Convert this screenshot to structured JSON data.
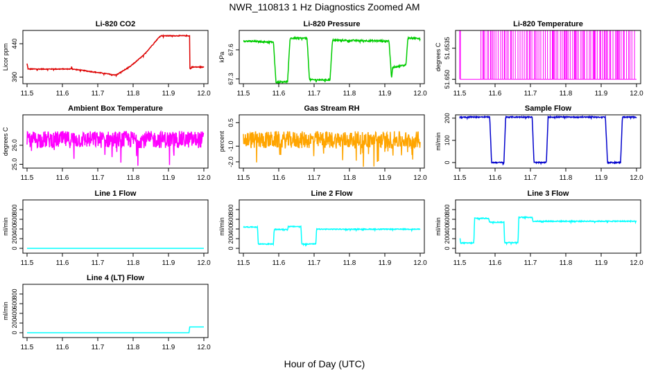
{
  "figure": {
    "title": "NWR_110813  1 Hz Diagnostics Zoomed AM",
    "xlabel": "Hour of Day (UTC)"
  },
  "chart_data": [
    {
      "type": "line",
      "title": "Li-820 CO2",
      "ylabel": "Licor ppm",
      "color": "#dd0000",
      "xlim": [
        11.5,
        12.0
      ],
      "ylim": [
        380,
        460
      ],
      "xticks": [
        "11.5",
        "11.6",
        "11.7",
        "11.8",
        "11.9",
        "12.0"
      ],
      "yticks": [
        {
          "v": 390,
          "label": "390"
        },
        {
          "v": 440,
          "label": "440"
        }
      ],
      "noise": 0.6,
      "series": [
        {
          "x": [
            11.5,
            11.5,
            11.503,
            11.503,
            11.625,
            11.625,
            11.628,
            11.628,
            11.752,
            11.752,
            11.792,
            11.792,
            11.83,
            11.83,
            11.877,
            11.877,
            11.96,
            11.96,
            11.965,
            11.965,
            12.0
          ],
          "y": [
            400,
            410,
            402,
            402,
            402,
            408,
            402,
            402,
            393,
            393,
            406,
            406,
            423,
            423,
            452,
            452,
            452,
            403,
            403,
            405,
            405
          ]
        }
      ]
    },
    {
      "type": "line",
      "title": "Li-820 Pressure",
      "ylabel": "kPa",
      "color": "#00cc00",
      "xlim": [
        11.5,
        12.0
      ],
      "ylim": [
        67.25,
        67.8
      ],
      "xticks": [
        "11.5",
        "11.6",
        "11.7",
        "11.8",
        "11.9",
        "12.0"
      ],
      "yticks": [
        {
          "v": 67.3,
          "label": "67.3"
        },
        {
          "v": 67.6,
          "label": "67.6"
        }
      ],
      "noise": 0.008,
      "series": [
        {
          "x": [
            11.5,
            11.5,
            11.503,
            11.585,
            11.592,
            11.625,
            11.632,
            11.68,
            11.687,
            11.745,
            11.752,
            11.912,
            11.919,
            11.922,
            11.955,
            11.96,
            11.965,
            12.0
          ],
          "y": [
            67.3,
            67.7,
            67.69,
            67.68,
            67.27,
            67.27,
            67.72,
            67.72,
            67.29,
            67.29,
            67.7,
            67.69,
            67.3,
            67.42,
            67.44,
            67.45,
            67.72,
            67.72
          ]
        }
      ]
    },
    {
      "type": "line",
      "title": "Li-820 Temperature",
      "ylabel": "degrees C",
      "color": "#ff00ff",
      "xlim": [
        11.5,
        12.0
      ],
      "ylim": [
        51.6495,
        51.6555
      ],
      "xticks": [
        "11.5",
        "11.6",
        "11.7",
        "11.8",
        "11.9",
        "12.0"
      ],
      "yticks": [
        {
          "v": 51.65,
          "label": "51.650"
        },
        {
          "v": 51.6535,
          "label": "51.6535"
        }
      ],
      "toggle": {
        "low": 51.65,
        "high": 51.6555,
        "start": 11.56
      },
      "series": [
        {
          "x": [
            11.5,
            11.5,
            11.502,
            11.502,
            12.0
          ],
          "y": [
            51.65,
            51.6555,
            51.6555,
            51.65,
            51.65
          ]
        }
      ]
    },
    {
      "type": "line",
      "title": "Ambient Box Temperature",
      "ylabel": "degrees C",
      "color": "#ff00ff",
      "xlim": [
        11.5,
        12.0
      ],
      "ylim": [
        24.8,
        27.6
      ],
      "xticks": [
        "11.5",
        "11.6",
        "11.7",
        "11.8",
        "11.9",
        "12.0"
      ],
      "yticks": [
        {
          "v": 25.0,
          "label": "25.0"
        },
        {
          "v": 26.0,
          "label": "26.0"
        }
      ],
      "noise": 0.45,
      "series": [
        {
          "x": [
            11.5,
            12.0
          ],
          "y": [
            26.3,
            26.3
          ]
        }
      ]
    },
    {
      "type": "line",
      "title": "Gas Stream RH",
      "ylabel": "percent",
      "color": "#ffa500",
      "xlim": [
        11.5,
        12.0
      ],
      "ylim": [
        -2.4,
        1.0
      ],
      "xticks": [
        "11.5",
        "11.6",
        "11.7",
        "11.8",
        "11.9",
        "12.0"
      ],
      "yticks": [
        {
          "v": -2.0,
          "label": "-2.0"
        },
        {
          "v": -1.0,
          "label": "-1.0"
        },
        {
          "v": 0.5,
          "label": "0.5"
        }
      ],
      "noise": 0.55,
      "series": [
        {
          "x": [
            11.5,
            12.0
          ],
          "y": [
            -0.6,
            -0.6
          ]
        }
      ]
    },
    {
      "type": "line",
      "title": "Sample Flow",
      "ylabel": "ml/min",
      "color": "#0000cc",
      "xlim": [
        11.5,
        12.0
      ],
      "ylim": [
        -25,
        215
      ],
      "xticks": [
        "11.5",
        "11.6",
        "11.7",
        "11.8",
        "11.9",
        "12.0"
      ],
      "yticks": [
        {
          "v": 0,
          "label": "0"
        },
        {
          "v": 100,
          "label": "100"
        },
        {
          "v": 200,
          "label": "200"
        }
      ],
      "noise": 2.5,
      "series": [
        {
          "x": [
            11.5,
            11.5,
            11.502,
            11.585,
            11.59,
            11.625,
            11.63,
            11.705,
            11.71,
            11.745,
            11.75,
            11.912,
            11.918,
            11.955,
            11.96,
            12.0
          ],
          "y": [
            70,
            205,
            205,
            205,
            0,
            0,
            205,
            205,
            0,
            0,
            205,
            205,
            0,
            0,
            205,
            205
          ]
        }
      ]
    },
    {
      "type": "line",
      "title": "Line 1 Flow",
      "ylabel": "ml/min",
      "color": "#00ffff",
      "xlim": [
        11.5,
        12.0
      ],
      "ylim": [
        -100,
        1000
      ],
      "xticks": [
        "11.5",
        "11.6",
        "11.7",
        "11.8",
        "11.9",
        "12.0"
      ],
      "yticks": [
        {
          "v": 0,
          "label": "0"
        },
        {
          "v": 200,
          "label": "200"
        },
        {
          "v": 400,
          "label": "400"
        },
        {
          "v": 600,
          "label": "600"
        },
        {
          "v": 800,
          "label": "800"
        }
      ],
      "noise": 0,
      "series": [
        {
          "x": [
            11.5,
            12.0
          ],
          "y": [
            0,
            0
          ]
        }
      ]
    },
    {
      "type": "line",
      "title": "Line 2 Flow",
      "ylabel": "ml/min",
      "color": "#00ffff",
      "xlim": [
        11.5,
        12.0
      ],
      "ylim": [
        -100,
        1000
      ],
      "xticks": [
        "11.5",
        "11.6",
        "11.7",
        "11.8",
        "11.9",
        "12.0"
      ],
      "yticks": [
        {
          "v": 0,
          "label": "0"
        },
        {
          "v": 200,
          "label": "200"
        },
        {
          "v": 400,
          "label": "400"
        },
        {
          "v": 600,
          "label": "600"
        },
        {
          "v": 800,
          "label": "800"
        }
      ],
      "noise": 8,
      "series": [
        {
          "x": [
            11.5,
            11.54,
            11.542,
            11.585,
            11.587,
            11.625,
            11.627,
            11.663,
            11.665,
            11.705,
            11.707,
            12.0
          ],
          "y": [
            440,
            440,
            90,
            90,
            390,
            390,
            450,
            450,
            90,
            90,
            395,
            395
          ]
        }
      ]
    },
    {
      "type": "line",
      "title": "Line 3 Flow",
      "ylabel": "ml/min",
      "color": "#00ffff",
      "xlim": [
        11.5,
        12.0
      ],
      "ylim": [
        -100,
        1000
      ],
      "xticks": [
        "11.5",
        "11.6",
        "11.7",
        "11.8",
        "11.9",
        "12.0"
      ],
      "yticks": [
        {
          "v": 0,
          "label": "0"
        },
        {
          "v": 200,
          "label": "200"
        },
        {
          "v": 400,
          "label": "400"
        },
        {
          "v": 600,
          "label": "600"
        },
        {
          "v": 800,
          "label": "800"
        }
      ],
      "noise": 10,
      "series": [
        {
          "x": [
            11.5,
            11.5,
            11.503,
            11.54,
            11.542,
            11.582,
            11.584,
            11.625,
            11.627,
            11.665,
            11.667,
            11.705,
            11.707,
            12.0
          ],
          "y": [
            230,
            230,
            110,
            110,
            620,
            620,
            540,
            540,
            120,
            120,
            640,
            640,
            560,
            560
          ]
        }
      ]
    },
    {
      "type": "line",
      "title": "Line 4 (LT) Flow",
      "ylabel": "ml/min",
      "color": "#00ffff",
      "xlim": [
        11.5,
        12.0
      ],
      "ylim": [
        -100,
        1000
      ],
      "xticks": [
        "11.5",
        "11.6",
        "11.7",
        "11.8",
        "11.9",
        "12.0"
      ],
      "yticks": [
        {
          "v": 0,
          "label": "0"
        },
        {
          "v": 200,
          "label": "200"
        },
        {
          "v": 400,
          "label": "400"
        },
        {
          "v": 600,
          "label": "600"
        },
        {
          "v": 800,
          "label": "800"
        }
      ],
      "noise": 0,
      "series": [
        {
          "x": [
            11.5,
            11.958,
            11.96,
            12.0
          ],
          "y": [
            0,
            0,
            120,
            120
          ]
        }
      ]
    }
  ]
}
